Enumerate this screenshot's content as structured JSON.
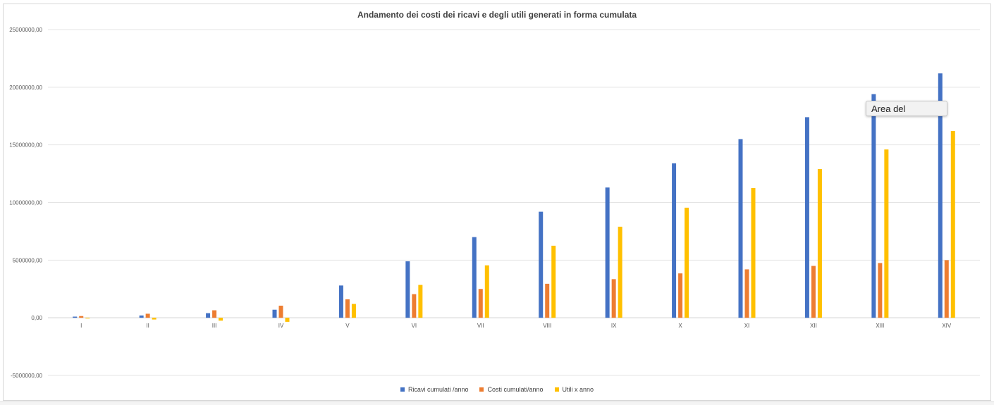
{
  "chart_data": {
    "type": "bar",
    "title": "Andamento dei costi dei ricavi e degli utili generati in forma cumulata",
    "categories": [
      "I",
      "II",
      "III",
      "IV",
      "V",
      "VI",
      "VII",
      "VIII",
      "IX",
      "X",
      "XI",
      "XII",
      "XIII",
      "XIV"
    ],
    "series": [
      {
        "name": "Ricavi cumulati /anno",
        "color": "#4472c4",
        "values": [
          100000,
          200000,
          400000,
          700000,
          2800000,
          4900000,
          7000000,
          9200000,
          11300000,
          13400000,
          15500000,
          17400000,
          19400000,
          21200000
        ]
      },
      {
        "name": "Costi cumulati/anno",
        "color": "#ed7d31",
        "values": [
          150000,
          350000,
          650000,
          1050000,
          1600000,
          2050000,
          2500000,
          2950000,
          3350000,
          3850000,
          4200000,
          4500000,
          4750000,
          5000000
        ]
      },
      {
        "name": "Utili x anno",
        "color": "#ffc000",
        "values": [
          -50000,
          -150000,
          -250000,
          -350000,
          1200000,
          2850000,
          4550000,
          6250000,
          7900000,
          9550000,
          11250000,
          12900000,
          14600000,
          16200000
        ]
      }
    ],
    "ylim": [
      -5000000,
      25000000
    ],
    "yticks": [
      "25000000,00",
      "20000000,00",
      "15000000,00",
      "10000000,00",
      "5000000,00",
      "0,00",
      "-5000000,00"
    ],
    "ytick_values": [
      25000000,
      20000000,
      15000000,
      10000000,
      5000000,
      0,
      -5000000
    ],
    "grid": true,
    "legend_position": "bottom"
  },
  "tooltip": {
    "text": "Area del"
  }
}
